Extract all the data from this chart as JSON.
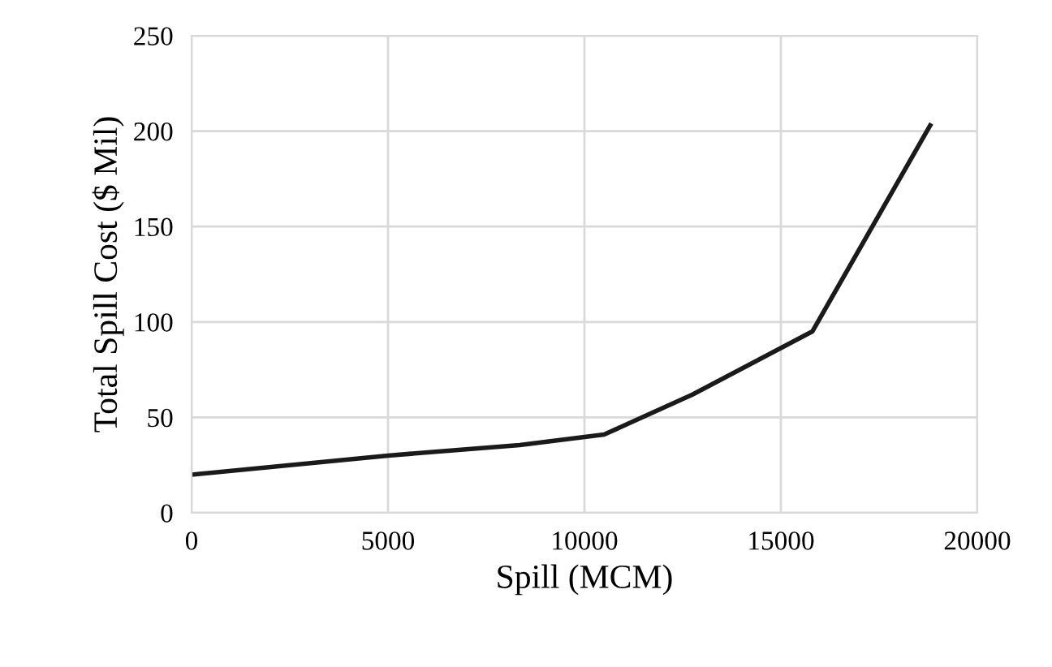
{
  "chart_data": {
    "type": "line",
    "xlabel": "Spill (MCM)",
    "ylabel": "Total Spill Cost ($ Mil)",
    "x": [
      0,
      5000,
      8350,
      10500,
      12750,
      15800,
      18800
    ],
    "series": [
      {
        "color": "#1a1a1a",
        "values": [
          20,
          30,
          35.5,
          41,
          62,
          95,
          203
        ]
      }
    ],
    "xlim": [
      0,
      20000
    ],
    "xticks": [
      0,
      5000,
      10000,
      15000,
      20000
    ],
    "ylim": [
      0,
      250
    ],
    "yticks": [
      0,
      50,
      100,
      150,
      200,
      250
    ],
    "grid": true,
    "marker": "none",
    "line_style": "solid",
    "legend": false
  }
}
